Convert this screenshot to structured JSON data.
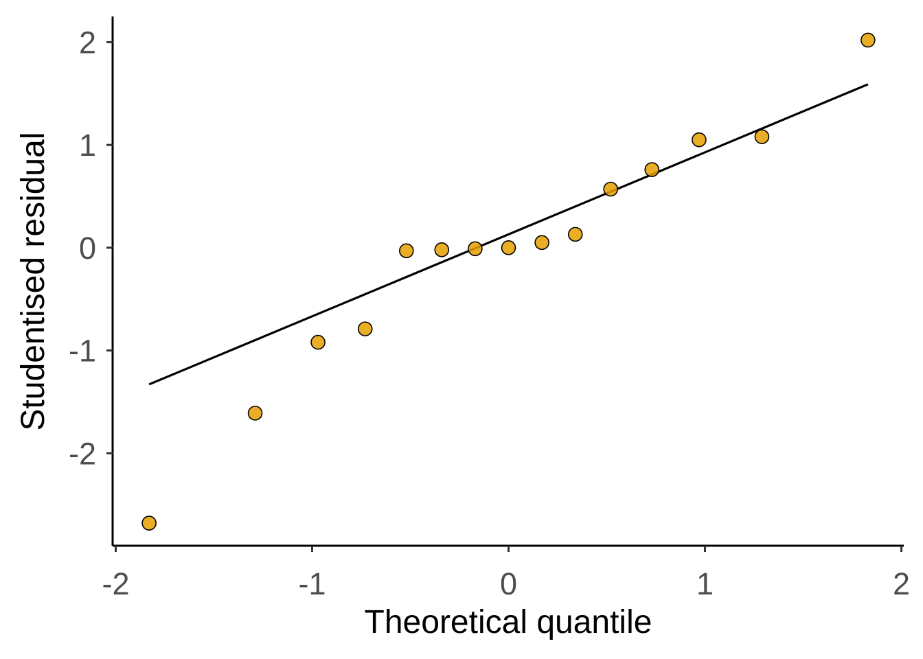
{
  "chart_data": {
    "type": "scatter",
    "title": "",
    "xlabel": "Theoretical quantile",
    "ylabel": "Studentised residual",
    "xlim": [
      -2.0,
      2.0
    ],
    "ylim": [
      -2.9,
      2.25
    ],
    "x_ticks": [
      -2,
      -1,
      0,
      1,
      2
    ],
    "x_tick_labels": [
      "-2",
      "-1",
      "0",
      "1",
      "2"
    ],
    "y_ticks": [
      -2,
      -1,
      0,
      1,
      2
    ],
    "y_tick_labels": [
      "-2",
      "-1",
      "0",
      "1",
      "2"
    ],
    "grid": false,
    "legend": "none",
    "point_color": "#E69F00",
    "point_edge_color": "#000000",
    "line_color": "#000000",
    "points": [
      {
        "x": -1.83,
        "y": -2.68
      },
      {
        "x": -1.29,
        "y": -1.61
      },
      {
        "x": -0.97,
        "y": -0.92
      },
      {
        "x": -0.73,
        "y": -0.79
      },
      {
        "x": -0.52,
        "y": -0.03
      },
      {
        "x": -0.34,
        "y": -0.02
      },
      {
        "x": -0.17,
        "y": -0.01
      },
      {
        "x": 0.0,
        "y": 0.0
      },
      {
        "x": 0.17,
        "y": 0.05
      },
      {
        "x": 0.34,
        "y": 0.13
      },
      {
        "x": 0.52,
        "y": 0.57
      },
      {
        "x": 0.73,
        "y": 0.76
      },
      {
        "x": 0.97,
        "y": 1.05
      },
      {
        "x": 1.29,
        "y": 1.08
      },
      {
        "x": 1.83,
        "y": 2.02
      }
    ],
    "reference_line": {
      "x": [
        -1.83,
        1.83
      ],
      "y": [
        -1.33,
        1.59
      ]
    }
  }
}
